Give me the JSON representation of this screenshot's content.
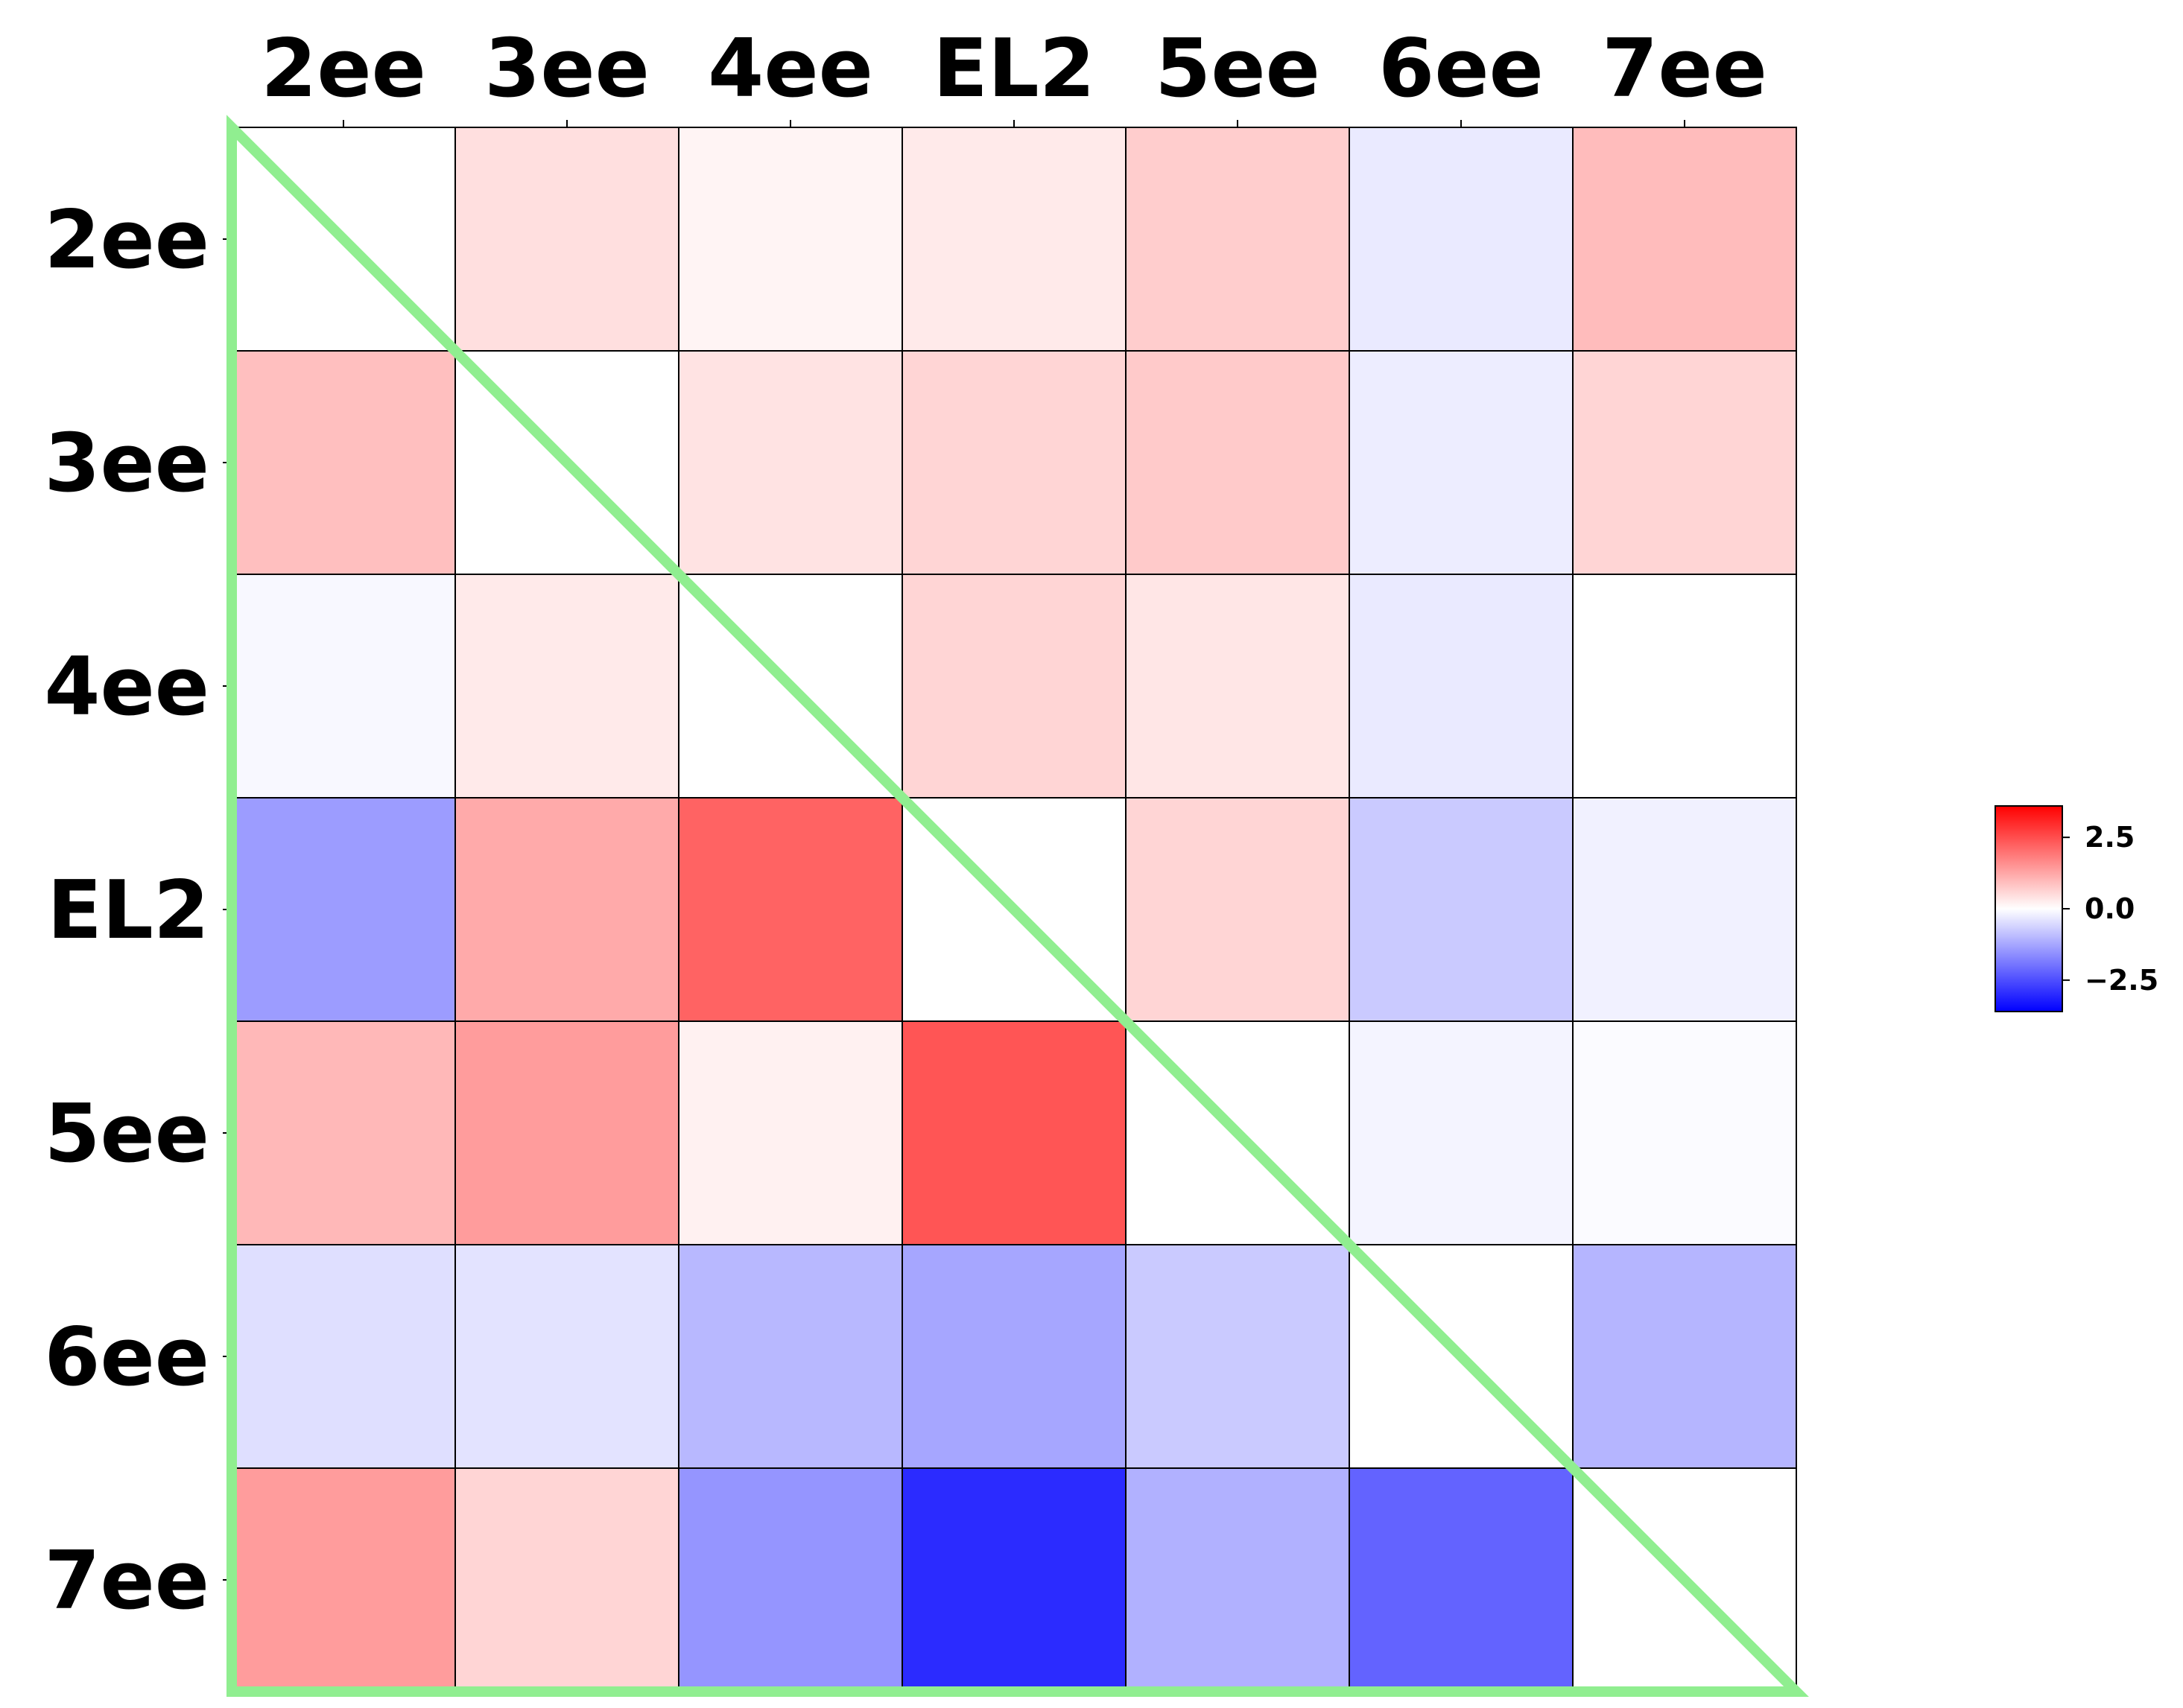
{
  "chart_data": {
    "type": "heatmap",
    "title": "",
    "xlabel": "",
    "ylabel": "",
    "x_labels": [
      "2ee",
      "3ee",
      "4ee",
      "EL2",
      "5ee",
      "6ee",
      "7ee"
    ],
    "y_labels": [
      "2ee",
      "3ee",
      "4ee",
      "EL2",
      "5ee",
      "6ee",
      "7ee"
    ],
    "values": [
      [
        0.0,
        0.45,
        0.15,
        0.3,
        0.7,
        -0.3,
        0.95
      ],
      [
        0.9,
        0.0,
        0.4,
        0.6,
        0.75,
        -0.25,
        0.6
      ],
      [
        -0.1,
        0.3,
        0.0,
        0.6,
        0.35,
        -0.3,
        0.0
      ],
      [
        -1.4,
        1.2,
        2.2,
        0.0,
        0.6,
        -0.75,
        -0.2
      ],
      [
        1.0,
        1.4,
        0.2,
        2.4,
        0.0,
        -0.15,
        -0.05
      ],
      [
        -0.45,
        -0.4,
        -1.0,
        -1.25,
        -0.75,
        0.0,
        -1.05
      ],
      [
        1.4,
        0.6,
        -1.5,
        -3.0,
        -1.1,
        -2.2,
        0.0
      ]
    ],
    "colormap": "bwr",
    "vmin": -3.6,
    "vmax": 3.6,
    "colorbar": {
      "ticks": [
        2.5,
        0.0,
        -2.5
      ],
      "tick_labels": [
        "2.5",
        "0.0",
        "−2.5"
      ],
      "placement": "right"
    },
    "overlay": {
      "shape": "triangle",
      "description_vertices": [
        "top-left",
        "bottom-left",
        "bottom-right"
      ],
      "color": "#90ee90"
    },
    "grid": true,
    "colors": {
      "min": "#0000ff",
      "mid": "#ffffff",
      "max": "#ff0000",
      "cell_border": "#000000",
      "overlay": "#90ee90"
    }
  }
}
